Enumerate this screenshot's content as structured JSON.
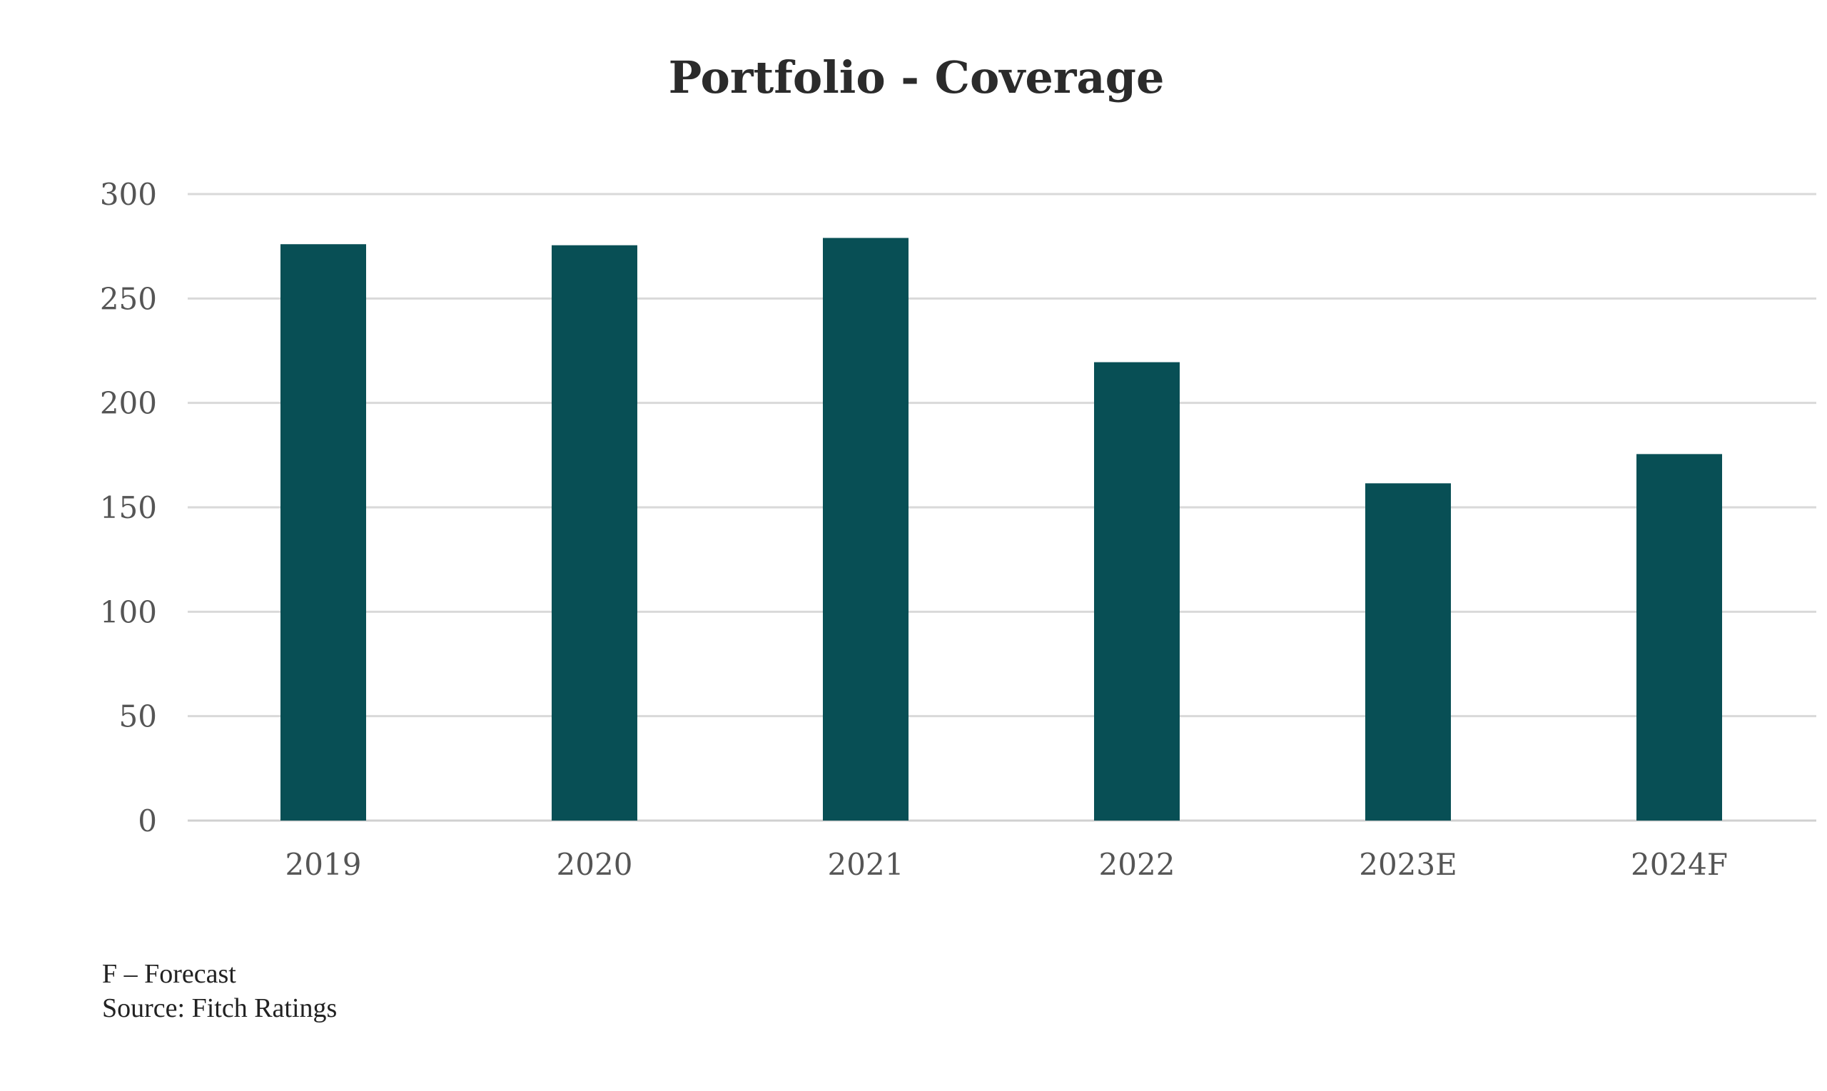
{
  "chart_data": {
    "type": "bar",
    "title": "Portfolio - Coverage",
    "xlabel": "",
    "ylabel": "",
    "categories": [
      "2019",
      "2020",
      "2021",
      "2022",
      "2023E",
      "2024F"
    ],
    "values": [
      276,
      275.5,
      279,
      219.5,
      161.5,
      175.5
    ],
    "ylim": [
      0,
      300
    ],
    "yticks": [
      "0",
      "50",
      "100",
      "150",
      "200",
      "250",
      "300"
    ],
    "ytick_values": [
      0,
      50,
      100,
      150,
      200,
      250,
      300
    ],
    "grid": true,
    "legend": "none",
    "bar_color": "#084f55"
  },
  "footnotes": {
    "line1": "F – Forecast",
    "line2": "Source: Fitch Ratings"
  }
}
